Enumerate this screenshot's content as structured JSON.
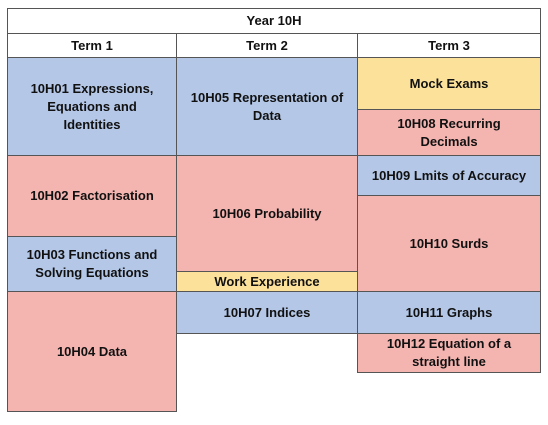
{
  "table": {
    "title": "Year 10H",
    "terms": [
      "Term 1",
      "Term 2",
      "Term 3"
    ],
    "term1": [
      "10H01 Expressions, Equations and Identities",
      "10H02 Factorisation",
      "10H03 Functions and Solving Equations",
      "10H04 Data"
    ],
    "term2": [
      "10H05 Representation of Data",
      "10H06 Probability",
      "Work Experience",
      "10H07 Indices"
    ],
    "term3": [
      "Mock Exams",
      "10H08 Recurring Decimals",
      "10H09 Lmits of Accuracy",
      "10H10 Surds",
      "10H11 Graphs",
      "10H12 Equation of a straight line"
    ]
  },
  "colors": {
    "blue": "#b4c7e7",
    "pink": "#f4b4b0",
    "yellow": "#fbe19a"
  }
}
